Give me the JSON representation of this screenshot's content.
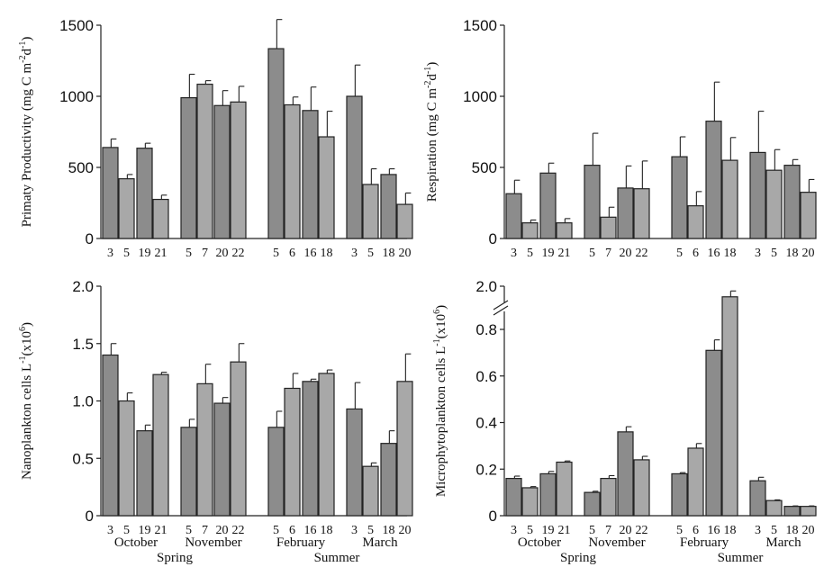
{
  "colors": {
    "bar_dark": "#8c8c8c",
    "bar_light": "#a8a8a8",
    "axis": "#222222",
    "background": "#ffffff"
  },
  "chart_data": [
    {
      "type": "bar",
      "ylabel": "Primaty Productivity (mg C m-2d-1)",
      "ylabel_main": "Primaty Productivity (mg C m",
      "ylabel_sup1": "-2",
      "ylabel_mid": "d",
      "ylabel_sup2": "-1",
      "ylabel_end": ")",
      "ylim": [
        0,
        1500
      ],
      "yticks": [
        0,
        500,
        1000,
        1500
      ],
      "ytick_labels": [
        "0",
        "500",
        "1000",
        "1500"
      ],
      "categories": [
        "3",
        "5",
        "19",
        "21",
        "5",
        "7",
        "20",
        "22",
        "5",
        "6",
        "16",
        "18",
        "3",
        "5",
        "18",
        "20"
      ],
      "values": [
        640,
        420,
        635,
        275,
        990,
        1085,
        935,
        960,
        1335,
        940,
        900,
        715,
        1000,
        380,
        450,
        240
      ],
      "errors": [
        60,
        30,
        35,
        30,
        165,
        25,
        105,
        110,
        205,
        55,
        165,
        180,
        220,
        110,
        40,
        80
      ]
    },
    {
      "type": "bar",
      "ylabel": "Respiration (mg C m-2d-1)",
      "ylabel_main": "Respiration (mg C m",
      "ylabel_sup1": "-2",
      "ylabel_mid": "d",
      "ylabel_sup2": "-1",
      "ylabel_end": ")",
      "ylim": [
        0,
        1500
      ],
      "yticks": [
        0,
        500,
        1000,
        1500
      ],
      "ytick_labels": [
        "0",
        "500",
        "1000",
        "1500"
      ],
      "categories": [
        "3",
        "5",
        "19",
        "21",
        "5",
        "7",
        "20",
        "22",
        "5",
        "6",
        "16",
        "18",
        "3",
        "5",
        "18",
        "20"
      ],
      "values": [
        315,
        110,
        460,
        110,
        515,
        150,
        355,
        350,
        575,
        230,
        825,
        550,
        605,
        480,
        515,
        325
      ],
      "errors": [
        95,
        20,
        70,
        30,
        225,
        70,
        155,
        195,
        140,
        100,
        275,
        160,
        290,
        145,
        40,
        90
      ]
    },
    {
      "type": "bar",
      "ylabel": "Nanoplankton cells L-1(x10 6)",
      "ylabel_main": "Nanoplankton cells L",
      "ylabel_sup1": "-1",
      "ylabel_mid": "(x10",
      "ylabel_sup2": "6",
      "ylabel_end": ")",
      "ylim": [
        0,
        2.0
      ],
      "yticks": [
        0,
        0.5,
        1.0,
        1.5,
        2.0
      ],
      "ytick_labels": [
        "0",
        "0.5",
        "1.0",
        "1.5",
        "2.0"
      ],
      "categories": [
        "3",
        "5",
        "19",
        "21",
        "5",
        "7",
        "20",
        "22",
        "5",
        "6",
        "16",
        "18",
        "3",
        "5",
        "18",
        "20"
      ],
      "values": [
        1.4,
        1.0,
        0.74,
        1.23,
        0.77,
        1.15,
        0.98,
        1.34,
        0.77,
        1.11,
        1.17,
        1.24,
        0.93,
        0.43,
        0.63,
        1.17
      ],
      "errors": [
        0.1,
        0.07,
        0.05,
        0.02,
        0.07,
        0.17,
        0.05,
        0.16,
        0.14,
        0.13,
        0.02,
        0.03,
        0.23,
        0.03,
        0.11,
        0.24
      ],
      "months": [
        "October",
        "November",
        "February",
        "March"
      ],
      "seasons": [
        "Spring",
        "Summer"
      ]
    },
    {
      "type": "bar",
      "ylabel": "Microphytoplankton cells L-1(x10 6)",
      "ylabel_main": "Microphytoplankton  cells L",
      "ylabel_sup1": "-1",
      "ylabel_mid": "(x10",
      "ylabel_sup2": "6",
      "ylabel_end": ")",
      "ylim": [
        0,
        0.9
      ],
      "axis_break": true,
      "yticks": [
        0,
        0.2,
        0.4,
        0.6,
        0.8
      ],
      "ytick_labels": [
        "0",
        "0.2",
        "0.4",
        "0.6",
        "0.8"
      ],
      "top_tick_label": "2.0",
      "categories": [
        "3",
        "5",
        "19",
        "21",
        "5",
        "7",
        "20",
        "22",
        "5",
        "6",
        "16",
        "18",
        "3",
        "5",
        "18",
        "20"
      ],
      "values": [
        0.16,
        0.12,
        0.18,
        0.23,
        0.1,
        0.16,
        0.36,
        0.24,
        0.18,
        0.29,
        0.71,
        0.94,
        0.15,
        0.065,
        0.04,
        0.04
      ],
      "errors": [
        0.01,
        0.005,
        0.01,
        0.005,
        0.005,
        0.012,
        0.022,
        0.015,
        0.005,
        0.02,
        0.045,
        0.025,
        0.015,
        0.003,
        0.002,
        0.002
      ],
      "months": [
        "October",
        "November",
        "February",
        "March"
      ],
      "seasons": [
        "Spring",
        "Summer"
      ]
    }
  ]
}
